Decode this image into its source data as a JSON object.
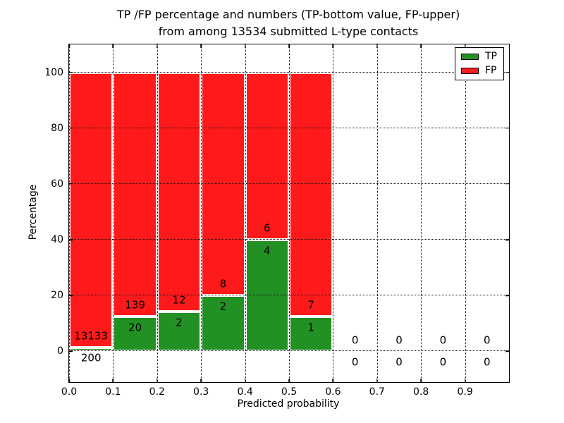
{
  "chart_data": {
    "type": "bar",
    "stacked": true,
    "title_line1": "TP /FP percentage and numbers (TP-bottom value, FP-upper)",
    "title_line2": "from among 13534 submitted L-type contacts",
    "xlabel": "Predicted probability",
    "ylabel": "Percentage",
    "total_submitted": 13534,
    "xlim": [
      0.0,
      1.0
    ],
    "ylim": [
      -11,
      110
    ],
    "xticks": {
      "values": [
        0.0,
        0.1,
        0.2,
        0.3,
        0.4,
        0.5,
        0.6,
        0.7,
        0.8,
        0.9
      ],
      "labels": [
        "0.0",
        "0.1",
        "0.2",
        "0.3",
        "0.4",
        "0.5",
        "0.6",
        "0.7",
        "0.8",
        "0.9"
      ]
    },
    "yticks": {
      "values": [
        0,
        20,
        40,
        60,
        80,
        100
      ],
      "labels": [
        "0",
        "20",
        "40",
        "60",
        "80",
        "100"
      ]
    },
    "grid": "dotted",
    "legend": {
      "position": "upper-right",
      "entries": [
        {
          "label": "TP",
          "color": "#239023"
        },
        {
          "label": "FP",
          "color": "#fe1a1a"
        }
      ]
    },
    "colors": {
      "tp": "#239023",
      "fp": "#fe1a1a",
      "edge": "#ffffff",
      "grid": "#111111",
      "text": "#000000"
    },
    "label_offset_units": 4,
    "bins": [
      {
        "x0": 0.0,
        "x1": 0.1,
        "tp": 200,
        "fp": 13133,
        "tp_pct": 1.5,
        "fp_pct": 98.5
      },
      {
        "x0": 0.1,
        "x1": 0.2,
        "tp": 20,
        "fp": 139,
        "tp_pct": 12.58,
        "fp_pct": 87.42
      },
      {
        "x0": 0.2,
        "x1": 0.3,
        "tp": 2,
        "fp": 12,
        "tp_pct": 14.29,
        "fp_pct": 85.71
      },
      {
        "x0": 0.3,
        "x1": 0.4,
        "tp": 2,
        "fp": 8,
        "tp_pct": 20.0,
        "fp_pct": 80.0
      },
      {
        "x0": 0.4,
        "x1": 0.5,
        "tp": 4,
        "fp": 6,
        "tp_pct": 40.0,
        "fp_pct": 60.0
      },
      {
        "x0": 0.5,
        "x1": 0.6,
        "tp": 1,
        "fp": 7,
        "tp_pct": 12.5,
        "fp_pct": 87.5
      },
      {
        "x0": 0.6,
        "x1": 0.7,
        "tp": 0,
        "fp": 0,
        "tp_pct": 0,
        "fp_pct": 0
      },
      {
        "x0": 0.7,
        "x1": 0.8,
        "tp": 0,
        "fp": 0,
        "tp_pct": 0,
        "fp_pct": 0
      },
      {
        "x0": 0.8,
        "x1": 0.9,
        "tp": 0,
        "fp": 0,
        "tp_pct": 0,
        "fp_pct": 0
      },
      {
        "x0": 0.9,
        "x1": 1.0,
        "tp": 0,
        "fp": 0,
        "tp_pct": 0,
        "fp_pct": 0
      }
    ]
  }
}
